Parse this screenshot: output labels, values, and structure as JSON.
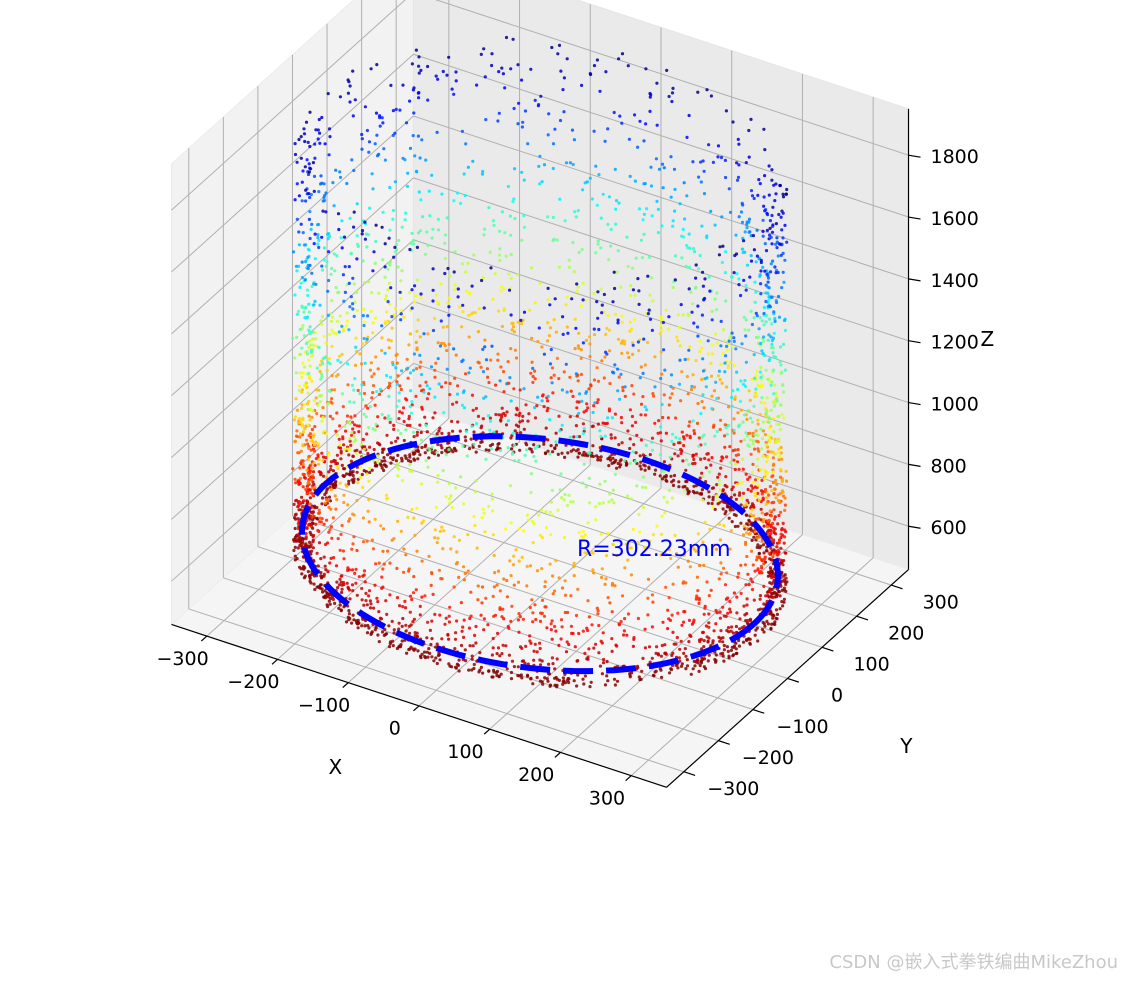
{
  "chart_data": {
    "type": "scatter",
    "projection": "3d",
    "title": "",
    "xlabel": "X",
    "ylabel": "Y",
    "zlabel": "Z",
    "xlim": [
      -350,
      350
    ],
    "ylim": [
      -350,
      350
    ],
    "zlim": [
      460,
      1950
    ],
    "x_ticks": [
      -300,
      -200,
      -100,
      0,
      100,
      200,
      300
    ],
    "y_ticks": [
      -300,
      -200,
      -100,
      0,
      100,
      200,
      300
    ],
    "z_ticks": [
      600,
      800,
      1000,
      1200,
      1400,
      1600,
      1800
    ],
    "x_tick_labels": [
      "−300",
      "−200",
      "−100",
      "0",
      "100",
      "200",
      "300"
    ],
    "y_tick_labels": [
      "−300",
      "−200",
      "−100",
      "0",
      "100",
      "200",
      "300"
    ],
    "z_tick_labels": [
      "600",
      "800",
      "1000",
      "1200",
      "1400",
      "1600",
      "1800"
    ],
    "grid": true,
    "colormap": "jet_r (by height z)",
    "point_cloud": {
      "shape": "cylinder wall",
      "radius": 302.23,
      "z_range": [
        560,
        1880
      ],
      "point_count": 4500,
      "denser_near_bottom": true
    },
    "fitted_circle": {
      "radius": 302.23,
      "center": [
        0,
        0
      ],
      "z": 600,
      "style": "dashed",
      "color": "#0000ff"
    },
    "annotation": {
      "text": "R=302.23mm",
      "x": 30,
      "y": 40,
      "z": 600,
      "color": "#0000ff"
    }
  },
  "watermark": "CSDN @嵌入式拳铁编曲MikeZhou"
}
